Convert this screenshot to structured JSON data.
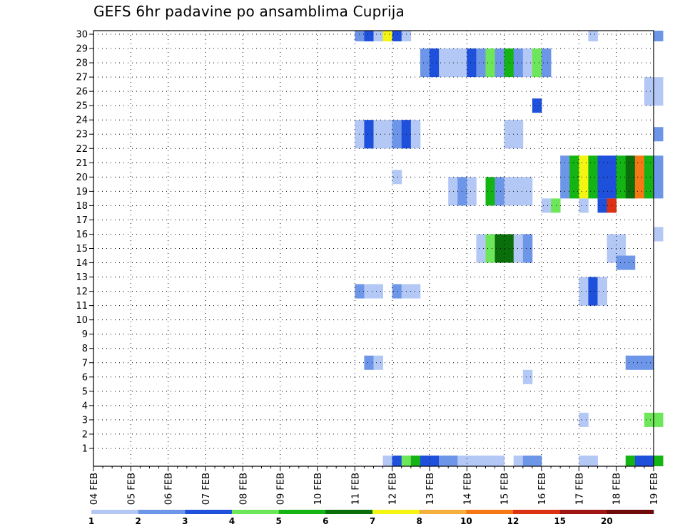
{
  "chart_data": {
    "type": "heatmap",
    "title": "GEFS 6hr padavine po ansamblima Cuprija",
    "xlabel": "",
    "ylabel": "",
    "x_ticks": [
      "04 FEB",
      "05 FEB",
      "06 FEB",
      "07 FEB",
      "08 FEB",
      "09 FEB",
      "10 FEB",
      "11 FEB",
      "12 FEB",
      "13 FEB",
      "14 FEB",
      "15 FEB",
      "16 FEB",
      "17 FEB",
      "18 FEB",
      "19 FEB"
    ],
    "y_ticks": [
      "1",
      "2",
      "3",
      "4",
      "5",
      "6",
      "7",
      "8",
      "9",
      "10",
      "11",
      "12",
      "13",
      "14",
      "15",
      "16",
      "17",
      "18",
      "19",
      "20",
      "21",
      "22",
      "23",
      "24",
      "25",
      "26",
      "27",
      "28",
      "29",
      "30"
    ],
    "x_range_days": [
      0,
      15
    ],
    "y_range": [
      0,
      30
    ],
    "steps_per_day": 4,
    "grid": true,
    "legend_position": "bottom",
    "legend": {
      "colors": [
        "#b4c8f5",
        "#6e96e8",
        "#1e50dc",
        "#6ee65a",
        "#14b414",
        "#0a6e0a",
        "#f5f514",
        "#f5af3c",
        "#f57814",
        "#dc3214",
        "#a01414",
        "#6e0a0a"
      ],
      "labels": [
        "1",
        "2",
        "3",
        "4",
        "5",
        "6",
        "7",
        "8",
        "10",
        "12",
        "15",
        "20"
      ]
    },
    "cells": [
      [
        30,
        28,
        1,
        [
          2,
          3,
          1,
          7,
          3,
          1
        ]
      ],
      [
        30,
        53,
        1,
        [
          1
        ]
      ],
      [
        30,
        60,
        1,
        [
          2
        ]
      ],
      [
        28,
        35,
        2,
        [
          2,
          3,
          1,
          1,
          1,
          3,
          2,
          4,
          2,
          5,
          2,
          1
        ]
      ],
      [
        28,
        47,
        2,
        [
          4,
          2
        ]
      ],
      [
        26,
        59,
        2,
        [
          1,
          1
        ]
      ],
      [
        25,
        47,
        1,
        [
          3
        ]
      ],
      [
        23,
        28,
        2,
        [
          1,
          3,
          1,
          1,
          2,
          3,
          1
        ]
      ],
      [
        23,
        44,
        2,
        [
          1,
          1
        ]
      ],
      [
        23,
        60,
        1,
        [
          2
        ]
      ],
      [
        20,
        32,
        1,
        [
          1
        ]
      ],
      [
        20,
        50,
        3,
        [
          2,
          5,
          7,
          5,
          3,
          3,
          5,
          6,
          9,
          5,
          2
        ]
      ],
      [
        19,
        38,
        2,
        [
          1,
          2,
          1
        ]
      ],
      [
        19,
        42,
        2,
        [
          5,
          2,
          1,
          1,
          1
        ]
      ],
      [
        18,
        48,
        1,
        [
          1,
          4
        ]
      ],
      [
        18,
        52,
        1,
        [
          1
        ]
      ],
      [
        18,
        54,
        1,
        [
          3,
          10
        ]
      ],
      [
        16,
        60,
        1,
        [
          1
        ]
      ],
      [
        15,
        41,
        2,
        [
          1,
          4,
          6,
          6,
          1,
          2
        ]
      ],
      [
        15,
        55,
        2,
        [
          1,
          1
        ]
      ],
      [
        14,
        56,
        1,
        [
          2,
          2
        ]
      ],
      [
        12,
        28,
        1,
        [
          2,
          1,
          1
        ]
      ],
      [
        12,
        32,
        1,
        [
          2,
          1,
          1
        ]
      ],
      [
        12,
        52,
        2,
        [
          1,
          3,
          1
        ]
      ],
      [
        7,
        29,
        1,
        [
          2,
          1
        ]
      ],
      [
        7,
        57,
        1,
        [
          2,
          2,
          2
        ]
      ],
      [
        6,
        46,
        1,
        [
          1
        ]
      ],
      [
        3,
        52,
        1,
        [
          1
        ]
      ],
      [
        3,
        59,
        1,
        [
          4,
          4
        ]
      ],
      [
        0,
        31,
        1,
        [
          1,
          3,
          4,
          5,
          3,
          3,
          2,
          2,
          1
        ]
      ],
      [
        0,
        40,
        1,
        [
          1,
          1,
          1,
          1
        ]
      ],
      [
        0,
        45,
        1,
        [
          1,
          2,
          2
        ]
      ],
      [
        0,
        52,
        1,
        [
          1,
          1
        ]
      ],
      [
        0,
        57,
        1,
        [
          5,
          3,
          3,
          5
        ]
      ]
    ]
  }
}
